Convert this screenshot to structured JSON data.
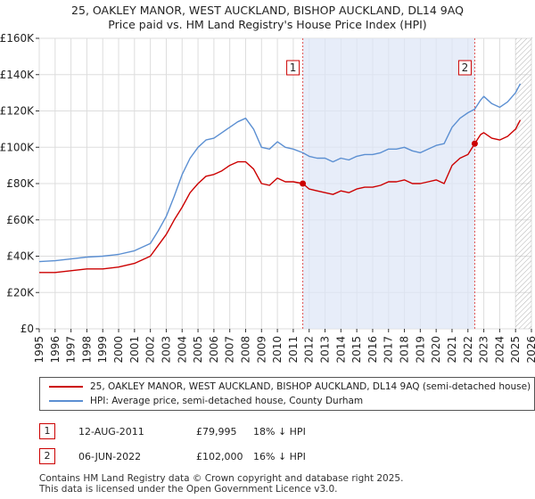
{
  "chart_data": {
    "type": "line",
    "title": "25, OAKLEY MANOR, WEST AUCKLAND, BISHOP AUCKLAND, DL14 9AQ",
    "subtitle": "Price paid vs. HM Land Registry's House Price Index (HPI)",
    "x_ticks": [
      "1995",
      "1996",
      "1997",
      "1998",
      "1999",
      "2000",
      "2001",
      "2002",
      "2003",
      "2004",
      "2005",
      "2006",
      "2007",
      "2008",
      "2009",
      "2010",
      "2011",
      "2012",
      "2013",
      "2014",
      "2015",
      "2016",
      "2017",
      "2018",
      "2019",
      "2020",
      "2021",
      "2022",
      "2023",
      "2024",
      "2025",
      "2026"
    ],
    "y_ticks": [
      "£0",
      "£20K",
      "£40K",
      "£60K",
      "£80K",
      "£100K",
      "£120K",
      "£140K",
      "£160K"
    ],
    "xlim": [
      1995,
      2026
    ],
    "ylim": [
      0,
      160000
    ],
    "series": [
      {
        "name": "25, OAKLEY MANOR, WEST AUCKLAND, BISHOP AUCKLAND, DL14 9AQ (semi-detached house)",
        "color": "#cc0000",
        "x": [
          1995,
          1996,
          1997,
          1998,
          1999,
          2000,
          2001,
          2002,
          2002.5,
          2003,
          2003.5,
          2004,
          2004.5,
          2005,
          2005.5,
          2006,
          2006.5,
          2007,
          2007.5,
          2008,
          2008.5,
          2009,
          2009.5,
          2010,
          2010.5,
          2011,
          2011.6,
          2012,
          2012.5,
          2013,
          2013.5,
          2014,
          2014.5,
          2015,
          2015.5,
          2016,
          2016.5,
          2017,
          2017.5,
          2018,
          2018.5,
          2019,
          2019.5,
          2020,
          2020.5,
          2021,
          2021.5,
          2022,
          2022.43,
          2022.8,
          2023,
          2023.5,
          2024,
          2024.5,
          2025,
          2025.3
        ],
        "y": [
          31000,
          31000,
          32000,
          33000,
          33000,
          34000,
          36000,
          40000,
          46000,
          52000,
          60000,
          67000,
          75000,
          80000,
          84000,
          85000,
          87000,
          90000,
          92000,
          92000,
          88000,
          80000,
          79000,
          83000,
          81000,
          81000,
          79995,
          77000,
          76000,
          75000,
          74000,
          76000,
          75000,
          77000,
          78000,
          78000,
          79000,
          81000,
          81000,
          82000,
          80000,
          80000,
          81000,
          82000,
          80000,
          90000,
          94000,
          96000,
          102000,
          107000,
          108000,
          105000,
          104000,
          106000,
          110000,
          115000
        ]
      },
      {
        "name": "HPI: Average price, semi-detached house, County Durham",
        "color": "#5b8fd2",
        "x": [
          1995,
          1996,
          1997,
          1998,
          1999,
          2000,
          2001,
          2002,
          2002.5,
          2003,
          2003.5,
          2004,
          2004.5,
          2005,
          2005.5,
          2006,
          2006.5,
          2007,
          2007.5,
          2008,
          2008.5,
          2009,
          2009.5,
          2010,
          2010.5,
          2011,
          2011.6,
          2012,
          2012.5,
          2013,
          2013.5,
          2014,
          2014.5,
          2015,
          2015.5,
          2016,
          2016.5,
          2017,
          2017.5,
          2018,
          2018.5,
          2019,
          2019.5,
          2020,
          2020.5,
          2021,
          2021.5,
          2022,
          2022.43,
          2022.8,
          2023,
          2023.5,
          2024,
          2024.5,
          2025,
          2025.3
        ],
        "y": [
          37000,
          37500,
          38500,
          39500,
          40000,
          41000,
          43000,
          47000,
          54000,
          62000,
          73000,
          85000,
          94000,
          100000,
          104000,
          105000,
          108000,
          111000,
          114000,
          116000,
          110000,
          100000,
          99000,
          103000,
          100000,
          99000,
          97000,
          95000,
          94000,
          94000,
          92000,
          94000,
          93000,
          95000,
          96000,
          96000,
          97000,
          99000,
          99000,
          100000,
          98000,
          97000,
          99000,
          101000,
          102000,
          111000,
          116000,
          119000,
          121000,
          126000,
          128000,
          124000,
          122000,
          125000,
          130000,
          135000
        ]
      }
    ],
    "annotations": [
      {
        "label": "1",
        "x": 2011.6,
        "y": 79995
      },
      {
        "label": "2",
        "x": 2022.43,
        "y": 102000
      }
    ],
    "hatch_from": 2025.0
  },
  "legend": {
    "item1": "25, OAKLEY MANOR, WEST AUCKLAND, BISHOP AUCKLAND, DL14 9AQ (semi-detached house)",
    "item2": "HPI: Average price, semi-detached house, County Durham"
  },
  "sales": [
    {
      "label": "1",
      "date": "12-AUG-2011",
      "price": "£79,995",
      "pct": "18% ↓ HPI"
    },
    {
      "label": "2",
      "date": "06-JUN-2022",
      "price": "£102,000",
      "pct": "16% ↓ HPI"
    }
  ],
  "footer": {
    "line1": "Contains HM Land Registry data © Crown copyright and database right 2025.",
    "line2": "This data is licensed under the Open Government Licence v3.0."
  }
}
